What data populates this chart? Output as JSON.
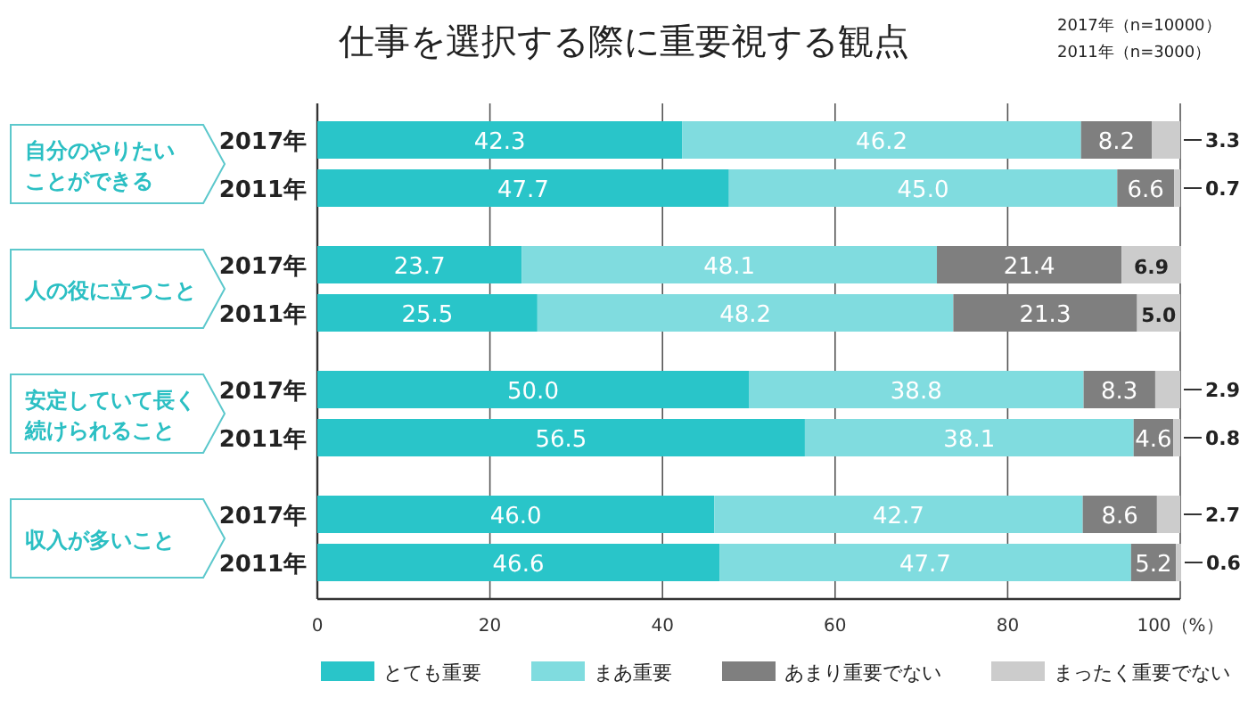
{
  "chart_data": {
    "type": "bar",
    "orientation": "horizontal",
    "stacked": true,
    "title": "仕事を選択する際に重要視する観点",
    "categories": [
      "2017年",
      "2011年",
      "2017年",
      "2011年",
      "2017年",
      "2011年",
      "2017年",
      "2011年"
    ],
    "series": [
      {
        "name": "とても重要",
        "color": "#29c5c9",
        "values": [
          42.3,
          47.7,
          23.7,
          25.5,
          50.0,
          56.5,
          46.0,
          46.6
        ],
        "value_labels": [
          "42.3",
          "47.7",
          "23.7",
          "25.5",
          "50.0",
          "56.5",
          "46.0",
          "46.6"
        ]
      },
      {
        "name": "まあ重要",
        "color": "#80dcdf",
        "values": [
          46.2,
          45.0,
          48.1,
          48.2,
          38.8,
          38.1,
          42.7,
          47.7
        ],
        "value_labels": [
          "46.2",
          "45.0",
          "48.1",
          "48.2",
          "38.8",
          "38.1",
          "42.7",
          "47.7"
        ]
      },
      {
        "name": "あまり重要でない",
        "color": "#7f7f7f",
        "values": [
          8.2,
          6.6,
          21.4,
          21.3,
          8.3,
          4.6,
          8.6,
          5.2
        ],
        "value_labels": [
          "8.2",
          "6.6",
          "21.4",
          "21.3",
          "8.3",
          "4.6",
          "8.6",
          "5.2"
        ]
      },
      {
        "name": "まったく重要でない",
        "color": "#cccccc",
        "values": [
          3.3,
          0.7,
          6.9,
          5.0,
          2.9,
          0.8,
          2.7,
          0.6
        ],
        "value_labels": [
          "3.3",
          "0.7",
          "6.9",
          "5.0",
          "2.9",
          "0.8",
          "2.7",
          "0.6"
        ]
      }
    ],
    "xlim": [
      0,
      100
    ],
    "xticks": [
      0,
      20,
      40,
      60,
      80,
      {
        "value": 100,
        "label": "100（%）"
      }
    ],
    "grid": "x",
    "legend": "bottom",
    "annotations": [
      "自分のやりたいことができる",
      "人の役に立つこと",
      "安定していて長く続けられること",
      "収入が多いこと",
      "2017年（n=10000）",
      "2011年（n=3000）"
    ]
  }
}
